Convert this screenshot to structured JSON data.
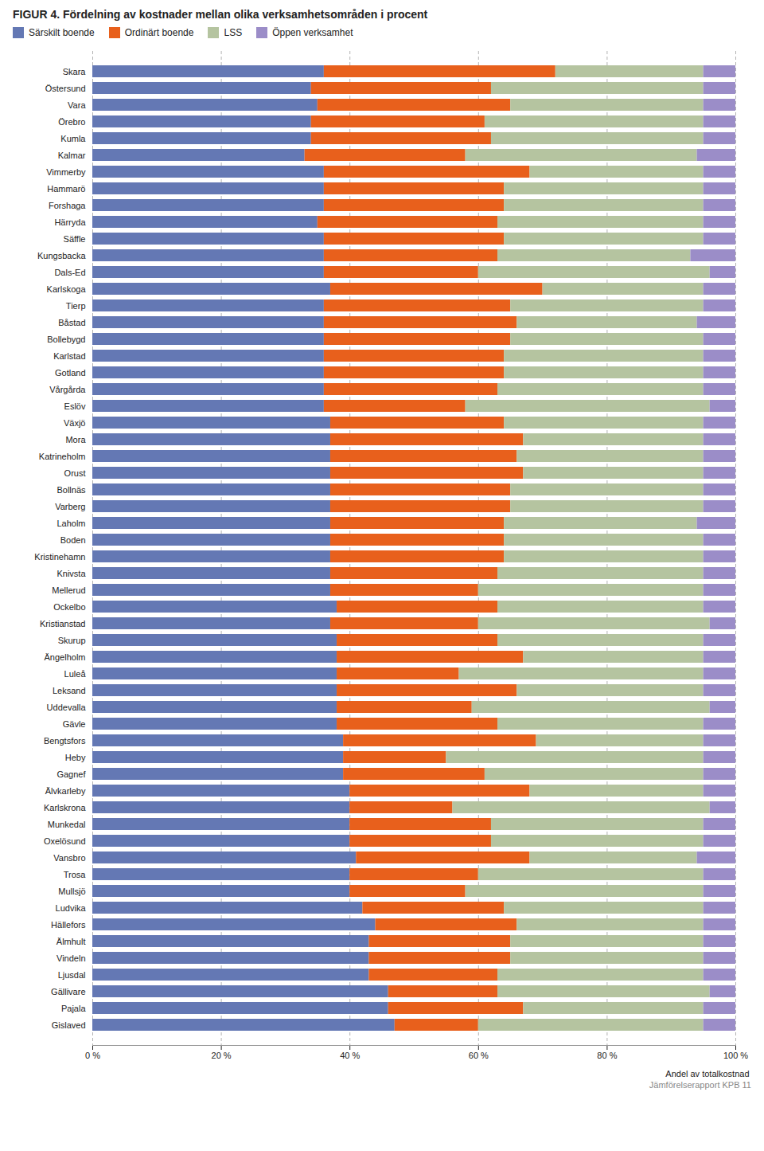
{
  "chart_data": {
    "type": "bar",
    "orientation": "horizontal",
    "stacked": true,
    "title": "FIGUR 4. Fördelning av kostnader mellan olika verksamhetsområden i procent",
    "xlabel": "Andel av totalkostnad",
    "categories": [
      "Skara",
      "Östersund",
      "Vara",
      "Örebro",
      "Kumla",
      "Kalmar",
      "Vimmerby",
      "Hammarö",
      "Forshaga",
      "Härryda",
      "Säffle",
      "Kungsbacka",
      "Dals-Ed",
      "Karlskoga",
      "Tierp",
      "Båstad",
      "Bollebygd",
      "Karlstad",
      "Gotland",
      "Vårgårda",
      "Eslöv",
      "Växjö",
      "Mora",
      "Katrineholm",
      "Orust",
      "Bollnäs",
      "Varberg",
      "Laholm",
      "Boden",
      "Kristinehamn",
      "Knivsta",
      "Mellerud",
      "Ockelbo",
      "Kristianstad",
      "Skurup",
      "Ängelholm",
      "Luleå",
      "Leksand",
      "Uddevalla",
      "Gävle",
      "Bengtsfors",
      "Heby",
      "Gagnef",
      "Älvkarleby",
      "Karlskrona",
      "Munkedal",
      "Oxelösund",
      "Vansbro",
      "Trosa",
      "Mullsjö",
      "Ludvika",
      "Hällefors",
      "Älmhult",
      "Vindeln",
      "Ljusdal",
      "Gällivare",
      "Pajala",
      "Gislaved"
    ],
    "series": [
      {
        "name": "Särskilt boende",
        "color": "#6478b4",
        "values": [
          36,
          34,
          35,
          34,
          34,
          33,
          36,
          36,
          36,
          35,
          36,
          36,
          36,
          37,
          36,
          36,
          36,
          36,
          36,
          36,
          36,
          37,
          37,
          37,
          37,
          37,
          37,
          37,
          37,
          37,
          37,
          37,
          38,
          37,
          38,
          38,
          38,
          38,
          38,
          38,
          39,
          39,
          39,
          40,
          40,
          40,
          40,
          41,
          40,
          40,
          42,
          44,
          43,
          43,
          43,
          46,
          46,
          47
        ]
      },
      {
        "name": "Ordinärt boende",
        "color": "#e8601c",
        "values": [
          36,
          28,
          30,
          27,
          28,
          25,
          32,
          28,
          28,
          28,
          28,
          27,
          24,
          33,
          29,
          30,
          29,
          28,
          28,
          27,
          22,
          27,
          30,
          29,
          30,
          28,
          28,
          27,
          27,
          27,
          26,
          23,
          25,
          23,
          25,
          29,
          19,
          28,
          21,
          25,
          30,
          16,
          22,
          28,
          16,
          22,
          22,
          27,
          20,
          18,
          22,
          22,
          22,
          22,
          20,
          17,
          21,
          13
        ]
      },
      {
        "name": "LSS",
        "color": "#b5c4a0",
        "values": [
          23,
          33,
          30,
          34,
          33,
          36,
          27,
          31,
          31,
          32,
          31,
          30,
          36,
          25,
          30,
          28,
          30,
          31,
          31,
          32,
          38,
          31,
          28,
          29,
          28,
          30,
          30,
          30,
          31,
          31,
          32,
          35,
          32,
          36,
          32,
          28,
          38,
          29,
          37,
          32,
          26,
          40,
          34,
          27,
          40,
          33,
          33,
          26,
          35,
          37,
          31,
          29,
          30,
          30,
          32,
          33,
          28,
          35
        ]
      },
      {
        "name": "Öppen verksamhet",
        "color": "#9b8dc8",
        "values": [
          5,
          5,
          5,
          5,
          5,
          6,
          5,
          5,
          5,
          5,
          5,
          7,
          4,
          5,
          5,
          6,
          5,
          5,
          5,
          5,
          4,
          5,
          5,
          5,
          5,
          5,
          5,
          6,
          5,
          5,
          5,
          5,
          5,
          4,
          5,
          5,
          5,
          5,
          4,
          5,
          5,
          5,
          5,
          5,
          4,
          5,
          5,
          6,
          5,
          5,
          5,
          5,
          5,
          5,
          5,
          4,
          5,
          5
        ]
      }
    ],
    "xlim": [
      0,
      100
    ],
    "xticks": [
      {
        "value": 0,
        "label": "0 %"
      },
      {
        "value": 20,
        "label": "20 %"
      },
      {
        "value": 40,
        "label": "40 %"
      },
      {
        "value": 60,
        "label": "60 %"
      },
      {
        "value": 80,
        "label": "80 %"
      },
      {
        "value": 100,
        "label": "100 %"
      }
    ],
    "grid": true,
    "legend": "upper left",
    "annotations": [
      "Jämförelserapport KPB  11"
    ]
  }
}
